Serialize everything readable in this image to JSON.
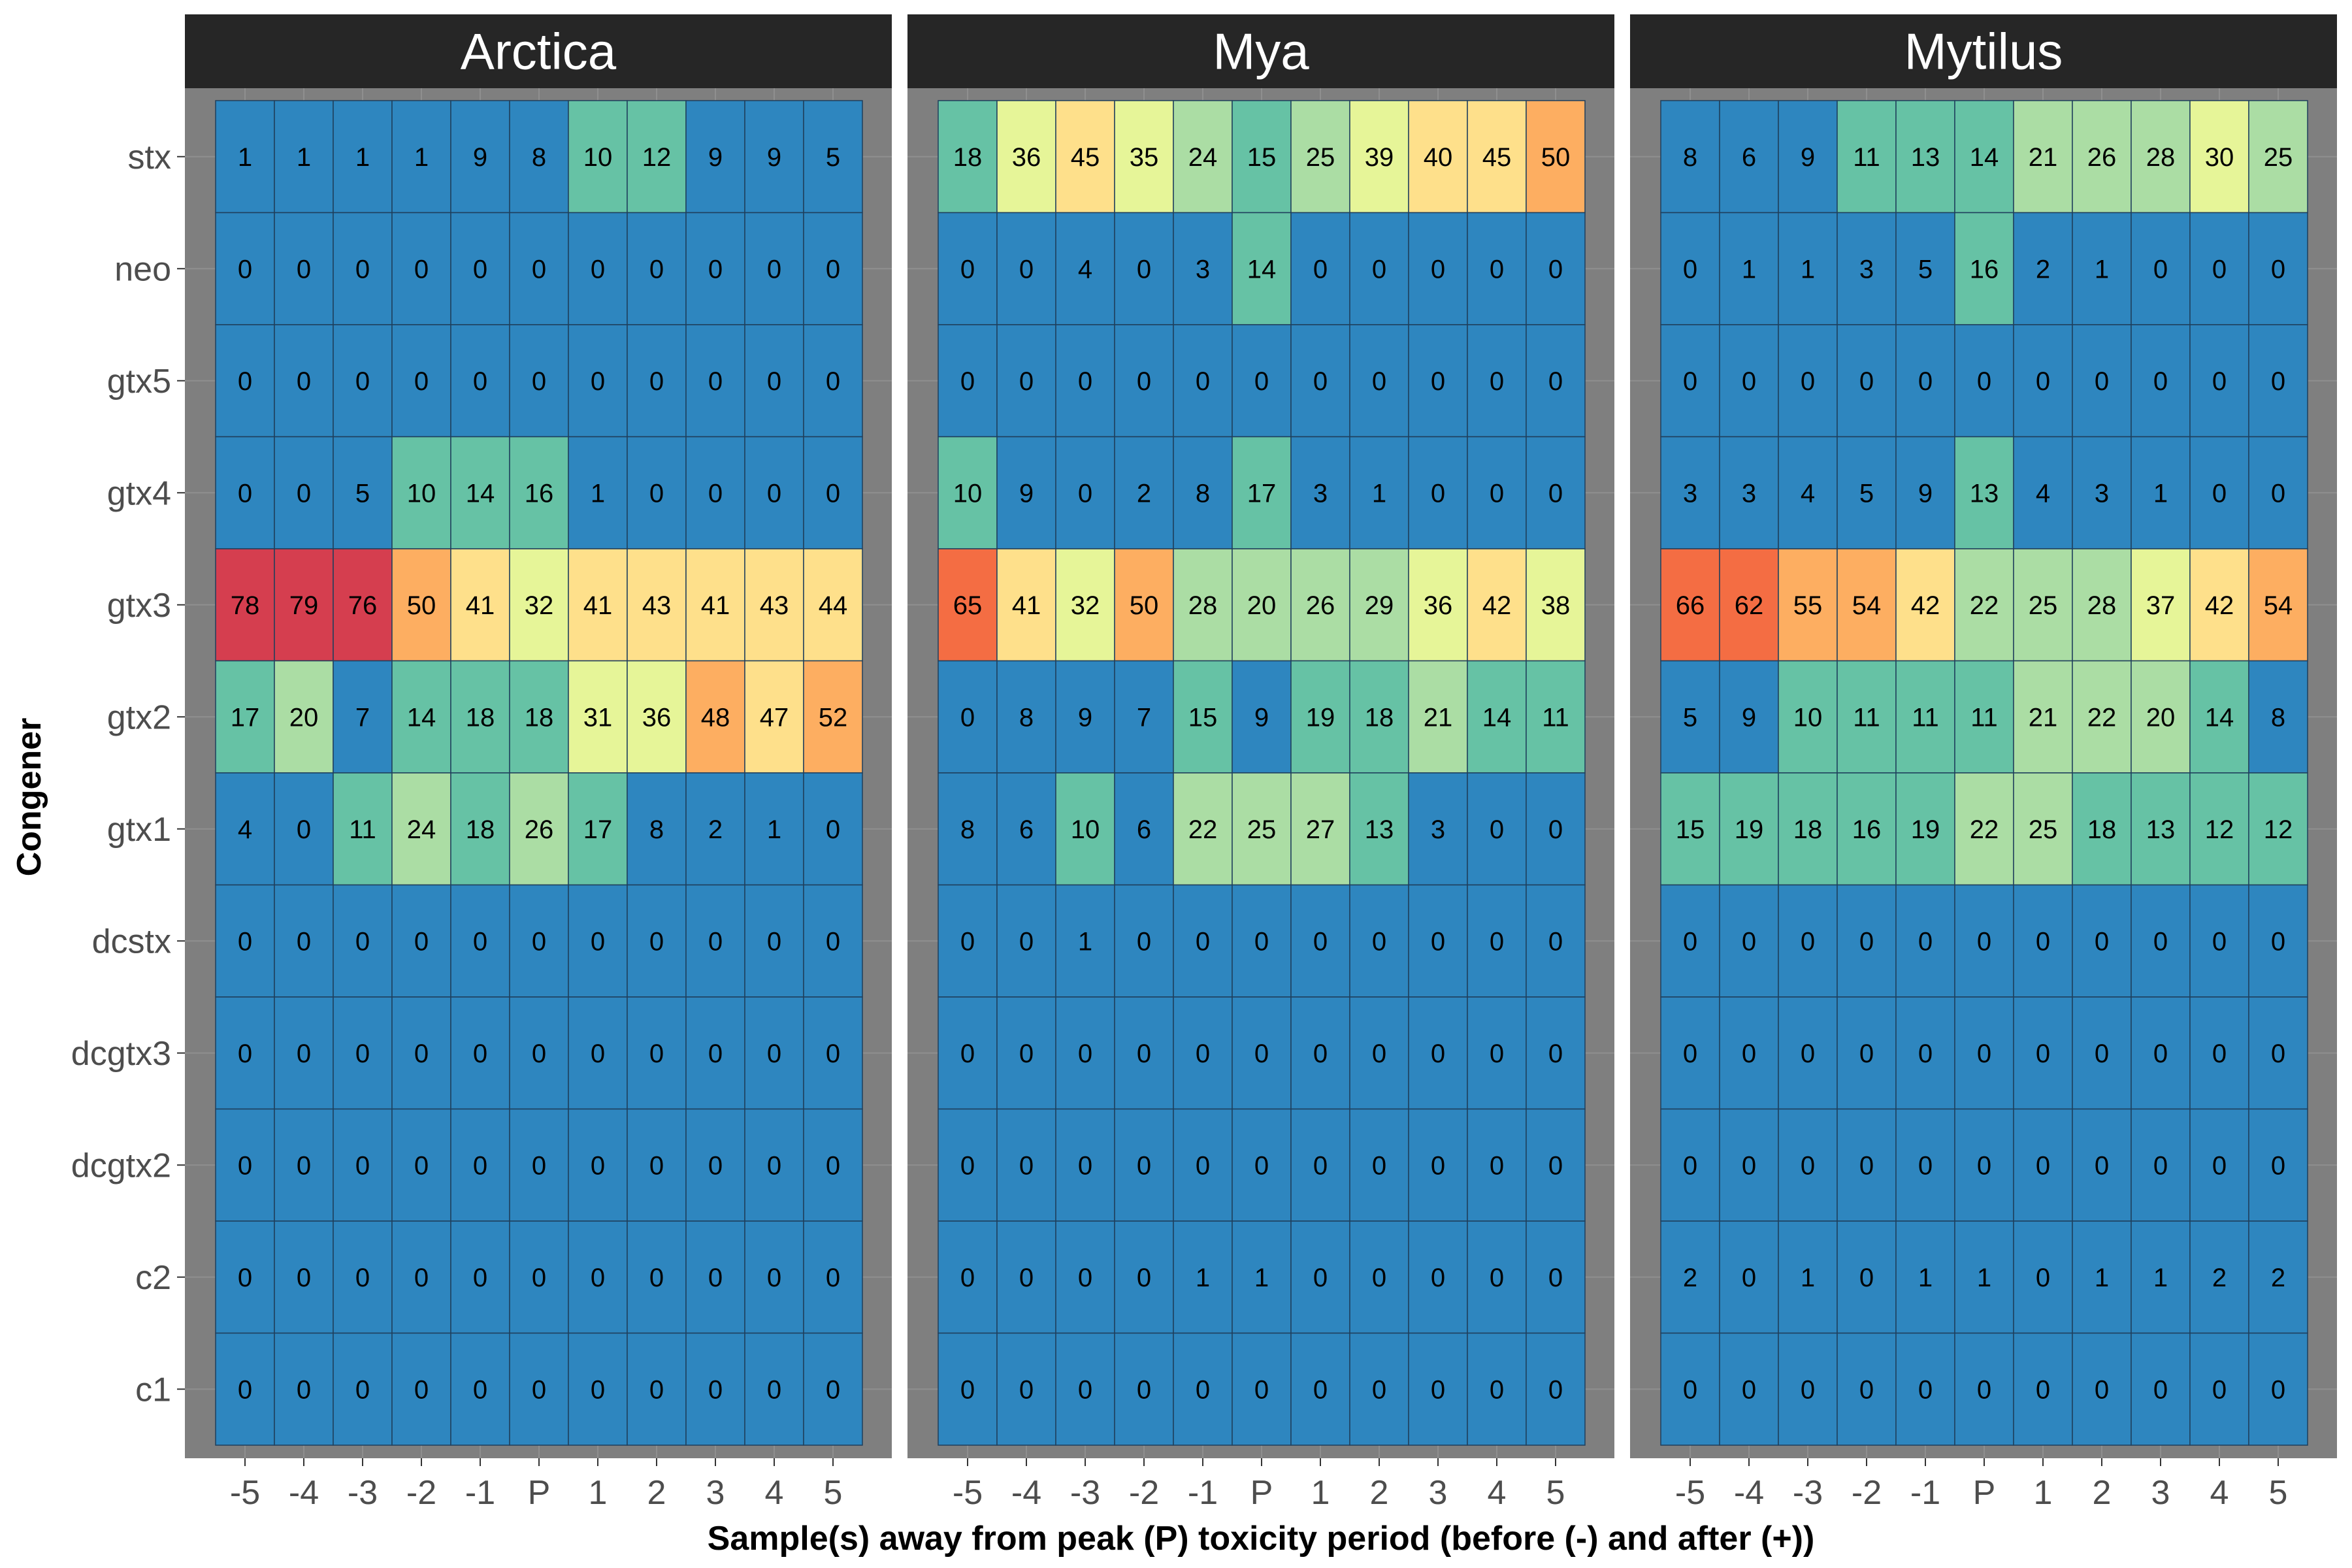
{
  "chart_data": {
    "type": "heatmap",
    "xlabel": "Sample(s) away from peak (P) toxicity period (before (-) and after (+))",
    "ylabel": "Congener",
    "x_categories": [
      "-5",
      "-4",
      "-3",
      "-2",
      "-1",
      "P",
      "1",
      "2",
      "3",
      "4",
      "5"
    ],
    "y_categories": [
      "stx",
      "neo",
      "gtx5",
      "gtx4",
      "gtx3",
      "gtx2",
      "gtx1",
      "dcstx",
      "dcgtx3",
      "dcgtx2",
      "c2",
      "c1"
    ],
    "colors": {
      "panel_background": "#7f7f7f",
      "strip_background": "#262626",
      "grid": "#8f8f8f",
      "cell_border": "#1f3f5c",
      "scale": [
        "#2e86bf",
        "#66c2a5",
        "#abdda4",
        "#e6f598",
        "#fee08b",
        "#fdae61",
        "#f46d43",
        "#d53e4f"
      ]
    },
    "facets": [
      {
        "name": "Arctica",
        "values": [
          [
            1,
            1,
            1,
            1,
            9,
            8,
            10,
            12,
            9,
            9,
            5
          ],
          [
            0,
            0,
            0,
            0,
            0,
            0,
            0,
            0,
            0,
            0,
            0
          ],
          [
            0,
            0,
            0,
            0,
            0,
            0,
            0,
            0,
            0,
            0,
            0
          ],
          [
            0,
            0,
            5,
            10,
            14,
            16,
            1,
            0,
            0,
            0,
            0
          ],
          [
            78,
            79,
            76,
            50,
            41,
            32,
            41,
            43,
            41,
            43,
            44
          ],
          [
            17,
            20,
            7,
            14,
            18,
            18,
            31,
            36,
            48,
            47,
            52
          ],
          [
            4,
            0,
            11,
            24,
            18,
            26,
            17,
            8,
            2,
            1,
            0
          ],
          [
            0,
            0,
            0,
            0,
            0,
            0,
            0,
            0,
            0,
            0,
            0
          ],
          [
            0,
            0,
            0,
            0,
            0,
            0,
            0,
            0,
            0,
            0,
            0
          ],
          [
            0,
            0,
            0,
            0,
            0,
            0,
            0,
            0,
            0,
            0,
            0
          ],
          [
            0,
            0,
            0,
            0,
            0,
            0,
            0,
            0,
            0,
            0,
            0
          ],
          [
            0,
            0,
            0,
            0,
            0,
            0,
            0,
            0,
            0,
            0,
            0
          ]
        ]
      },
      {
        "name": "Mya",
        "values": [
          [
            18,
            36,
            45,
            35,
            24,
            15,
            25,
            39,
            40,
            45,
            50
          ],
          [
            0,
            0,
            4,
            0,
            3,
            14,
            0,
            0,
            0,
            0,
            0
          ],
          [
            0,
            0,
            0,
            0,
            0,
            0,
            0,
            0,
            0,
            0,
            0
          ],
          [
            10,
            9,
            0,
            2,
            8,
            17,
            3,
            1,
            0,
            0,
            0
          ],
          [
            65,
            41,
            32,
            50,
            28,
            20,
            26,
            29,
            36,
            42,
            38
          ],
          [
            0,
            8,
            9,
            7,
            15,
            9,
            19,
            18,
            21,
            14,
            11
          ],
          [
            8,
            6,
            10,
            6,
            22,
            25,
            27,
            13,
            3,
            0,
            0
          ],
          [
            0,
            0,
            1,
            0,
            0,
            0,
            0,
            0,
            0,
            0,
            0
          ],
          [
            0,
            0,
            0,
            0,
            0,
            0,
            0,
            0,
            0,
            0,
            0
          ],
          [
            0,
            0,
            0,
            0,
            0,
            0,
            0,
            0,
            0,
            0,
            0
          ],
          [
            0,
            0,
            0,
            0,
            1,
            1,
            0,
            0,
            0,
            0,
            0
          ],
          [
            0,
            0,
            0,
            0,
            0,
            0,
            0,
            0,
            0,
            0,
            0
          ]
        ]
      },
      {
        "name": "Mytilus",
        "values": [
          [
            8,
            6,
            9,
            11,
            13,
            14,
            21,
            26,
            28,
            30,
            25
          ],
          [
            0,
            1,
            1,
            3,
            5,
            16,
            2,
            1,
            0,
            0,
            0
          ],
          [
            0,
            0,
            0,
            0,
            0,
            0,
            0,
            0,
            0,
            0,
            0
          ],
          [
            3,
            3,
            4,
            5,
            9,
            13,
            4,
            3,
            1,
            0,
            0
          ],
          [
            66,
            62,
            55,
            54,
            42,
            22,
            25,
            28,
            37,
            42,
            54
          ],
          [
            5,
            9,
            10,
            11,
            11,
            11,
            21,
            22,
            20,
            14,
            8
          ],
          [
            15,
            19,
            18,
            16,
            19,
            22,
            25,
            18,
            13,
            12,
            12
          ],
          [
            0,
            0,
            0,
            0,
            0,
            0,
            0,
            0,
            0,
            0,
            0
          ],
          [
            0,
            0,
            0,
            0,
            0,
            0,
            0,
            0,
            0,
            0,
            0
          ],
          [
            0,
            0,
            0,
            0,
            0,
            0,
            0,
            0,
            0,
            0,
            0
          ],
          [
            2,
            0,
            1,
            0,
            1,
            1,
            0,
            1,
            1,
            2,
            2
          ],
          [
            0,
            0,
            0,
            0,
            0,
            0,
            0,
            0,
            0,
            0,
            0
          ]
        ]
      }
    ]
  }
}
